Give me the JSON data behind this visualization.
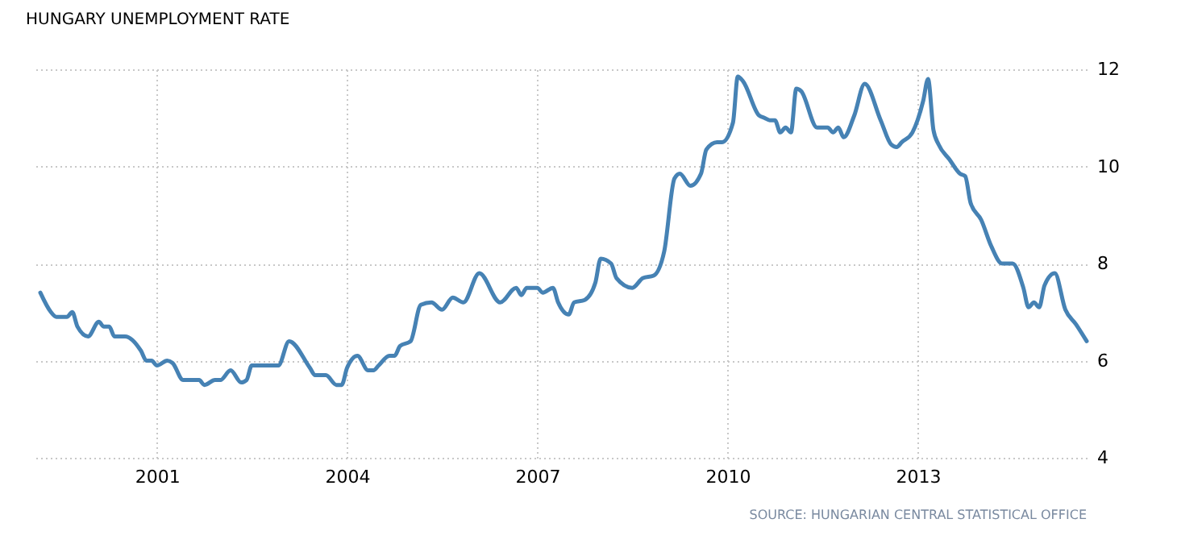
{
  "chart_data": {
    "type": "line",
    "title": "HUNGARY UNEMPLOYMENT RATE",
    "annotations": [
      "SOURCE: HUNGARIAN CENTRAL STATISTICAL OFFICE"
    ],
    "x": [
      "1999-03",
      "1999-05",
      "1999-06",
      "1999-08",
      "1999-09",
      "1999-10",
      "1999-12",
      "2000-02",
      "2000-03",
      "2000-04",
      "2000-05",
      "2000-07",
      "2000-10",
      "2000-11",
      "2000-12",
      "2001-01",
      "2001-03",
      "2001-04",
      "2001-06",
      "2001-07",
      "2001-09",
      "2001-10",
      "2001-12",
      "2002-01",
      "2002-03",
      "2002-05",
      "2002-06",
      "2002-07",
      "2002-12",
      "2003-02",
      "2003-06",
      "2003-07",
      "2003-09",
      "2003-11",
      "2003-12",
      "2004-01",
      "2004-03",
      "2004-05",
      "2004-06",
      "2004-07",
      "2004-09",
      "2004-10",
      "2004-11",
      "2005-01",
      "2005-03",
      "2005-05",
      "2005-07",
      "2005-09",
      "2005-11",
      "2006-02",
      "2006-06",
      "2006-09",
      "2006-10",
      "2006-11",
      "2007-01",
      "2007-02",
      "2007-04",
      "2007-05",
      "2007-07",
      "2007-08",
      "2007-10",
      "2007-12",
      "2008-01",
      "2008-03",
      "2008-04",
      "2008-07",
      "2008-09",
      "2008-11",
      "2009-01",
      "2009-03",
      "2009-04",
      "2009-06",
      "2009-08",
      "2009-09",
      "2009-11",
      "2009-12",
      "2010-02",
      "2010-03",
      "2010-04",
      "2010-07",
      "2010-08",
      "2010-09",
      "2010-10",
      "2010-11",
      "2010-12",
      "2011-01",
      "2011-02",
      "2011-03",
      "2011-06",
      "2011-07",
      "2011-08",
      "2011-09",
      "2011-10",
      "2011-11",
      "2012-01",
      "2012-03",
      "2012-06",
      "2012-08",
      "2012-09",
      "2012-10",
      "2012-12",
      "2013-02",
      "2013-03",
      "2013-04",
      "2013-05",
      "2013-07",
      "2013-09",
      "2013-10",
      "2013-11",
      "2014-01",
      "2014-03",
      "2014-05",
      "2014-07",
      "2014-09",
      "2014-10",
      "2014-11",
      "2014-12",
      "2015-01",
      "2015-03",
      "2015-05",
      "2015-07",
      "2015-09"
    ],
    "series": [
      {
        "color": "#4682b4",
        "values": [
          7.4,
          7.0,
          6.9,
          6.9,
          7.0,
          6.7,
          6.5,
          6.8,
          6.7,
          6.7,
          6.5,
          6.5,
          6.2,
          6.0,
          6.0,
          5.9,
          6.0,
          5.95,
          5.6,
          5.6,
          5.6,
          5.5,
          5.6,
          5.6,
          5.8,
          5.55,
          5.6,
          5.9,
          5.9,
          6.4,
          5.85,
          5.7,
          5.7,
          5.5,
          5.5,
          5.85,
          6.1,
          5.8,
          5.8,
          5.9,
          6.1,
          6.1,
          6.3,
          6.4,
          7.15,
          7.2,
          7.05,
          7.3,
          7.2,
          7.8,
          7.2,
          7.5,
          7.35,
          7.5,
          7.5,
          7.4,
          7.5,
          7.2,
          6.95,
          7.2,
          7.25,
          7.6,
          8.1,
          8.0,
          7.7,
          7.5,
          7.7,
          7.75,
          8.25,
          9.75,
          9.85,
          9.6,
          9.85,
          10.35,
          10.5,
          10.5,
          10.9,
          11.85,
          11.75,
          11.05,
          11.0,
          10.95,
          10.95,
          10.7,
          10.8,
          10.7,
          11.6,
          11.55,
          10.8,
          10.8,
          10.8,
          10.7,
          10.8,
          10.6,
          11.05,
          11.7,
          10.95,
          10.45,
          10.4,
          10.5,
          10.7,
          11.35,
          11.8,
          10.75,
          10.45,
          10.15,
          9.85,
          9.8,
          9.25,
          8.9,
          8.35,
          8.0,
          8.0,
          7.5,
          7.1,
          7.2,
          7.1,
          7.55,
          7.8,
          7.05,
          6.75,
          6.4
        ]
      }
    ],
    "xlim": [
      "1999-02",
      "2015-09"
    ],
    "xticks": [
      "2001",
      "2004",
      "2007",
      "2010",
      "2013"
    ],
    "ylim": [
      4,
      12
    ],
    "yticks": [
      4,
      6,
      8,
      10,
      12
    ],
    "grid": true,
    "marker": "none",
    "line_style": "solid"
  }
}
